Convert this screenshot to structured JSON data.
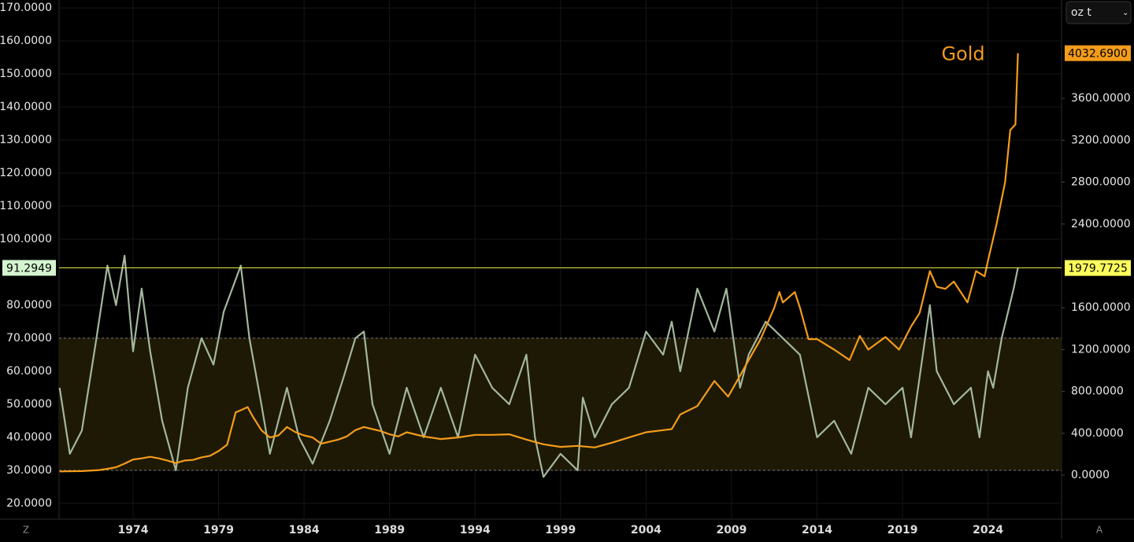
{
  "chart_data": {
    "type": "line",
    "unit_selector": "oz t",
    "scale_buttons": [
      "Z",
      "A"
    ],
    "xlim": [
      1969.67,
      2028.3
    ],
    "xticks": [
      1974,
      1979,
      1984,
      1989,
      1994,
      1999,
      2004,
      2009,
      2014,
      2019,
      2024
    ],
    "ylim": [
      15.2,
      172.4
    ],
    "yticks": [
      {
        "value": 20,
        "label": "20.0000"
      },
      {
        "value": 30,
        "label": "30.0000"
      },
      {
        "value": 40,
        "label": "40.0000"
      },
      {
        "value": 50,
        "label": "50.0000"
      },
      {
        "value": 60,
        "label": "60.0000"
      },
      {
        "value": 70,
        "label": "70.0000"
      },
      {
        "value": 80,
        "label": "80.0000"
      },
      {
        "value": 100,
        "label": "100.0000"
      },
      {
        "value": 110,
        "label": "110.0000"
      },
      {
        "value": 120,
        "label": "120.0000"
      },
      {
        "value": 130,
        "label": "130.0000"
      },
      {
        "value": 140,
        "label": "140.0000"
      },
      {
        "value": 150,
        "label": "150.0000"
      },
      {
        "value": 160,
        "label": "160.0000"
      },
      {
        "value": 170,
        "label": "170.0000"
      }
    ],
    "y2lim": [
      -421,
      4541
    ],
    "y2ticks": [
      {
        "value": 0,
        "label": "0.0000"
      },
      {
        "value": 400,
        "label": "400.0000"
      },
      {
        "value": 800,
        "label": "800.0000"
      },
      {
        "value": 1200,
        "label": "1200.0000"
      },
      {
        "value": 1600,
        "label": "1600.0000"
      },
      {
        "value": 2400,
        "label": "2400.0000"
      },
      {
        "value": 2800,
        "label": "2800.0000"
      },
      {
        "value": 3200,
        "label": "3200.0000"
      },
      {
        "value": 3600,
        "label": "3600.0000"
      }
    ],
    "grid": true,
    "band": {
      "from": 30,
      "to": 70,
      "color": "#1e1905"
    },
    "reference_line": {
      "value": 91.2949,
      "label": "91.2949",
      "y2_value": 1979.7725,
      "y2_label": "1979.7725",
      "color": "#e8e84a"
    },
    "series": [
      {
        "name": "Gold",
        "color": "#f39c1a",
        "axis": "y2",
        "last_value_label": "4032.6900",
        "x": [
          1969.7,
          1971,
          1972,
          1972.5,
          1973,
          1973.5,
          1974,
          1974.5,
          1975,
          1975.5,
          1976,
          1976.5,
          1977,
          1977.5,
          1978,
          1978.5,
          1979,
          1979.5,
          1980,
          1980.3,
          1980.7,
          1981,
          1981.5,
          1982,
          1982.5,
          1983,
          1983.5,
          1984,
          1984.5,
          1985,
          1985.5,
          1986,
          1986.5,
          1987,
          1987.5,
          1988,
          1988.5,
          1989,
          1989.5,
          1990,
          1991,
          1992,
          1993,
          1994,
          1995,
          1996,
          1997,
          1998,
          1999,
          2000,
          2001,
          2002,
          2003,
          2004,
          2005,
          2005.5,
          2006,
          2007,
          2008,
          2008.8,
          2009.5,
          2010,
          2010.7,
          2011.5,
          2011.8,
          2012,
          2012.7,
          2013,
          2013.5,
          2014,
          2015,
          2015.9,
          2016.5,
          2017,
          2018,
          2018.8,
          2019.5,
          2020,
          2020.6,
          2021,
          2021.5,
          2022,
          2022.8,
          2023.3,
          2023.8,
          2024,
          2024.5,
          2025,
          2025.3,
          2025.6,
          2025.75
        ],
        "values": [
          35,
          38,
          48,
          60,
          75,
          110,
          150,
          160,
          175,
          160,
          140,
          115,
          140,
          145,
          170,
          185,
          230,
          290,
          600,
          620,
          650,
          560,
          430,
          360,
          380,
          460,
          410,
          380,
          360,
          300,
          320,
          340,
          370,
          430,
          460,
          440,
          420,
          390,
          370,
          410,
          370,
          345,
          360,
          385,
          385,
          390,
          340,
          295,
          270,
          280,
          265,
          310,
          360,
          410,
          430,
          440,
          580,
          660,
          900,
          750,
          950,
          1100,
          1300,
          1600,
          1750,
          1650,
          1750,
          1600,
          1300,
          1300,
          1200,
          1100,
          1330,
          1200,
          1320,
          1200,
          1420,
          1550,
          1950,
          1800,
          1780,
          1850,
          1650,
          1950,
          1900,
          2050,
          2400,
          2800,
          3300,
          3350,
          4032.69
        ]
      },
      {
        "color": "#a3b79d",
        "x": [
          1969.7,
          1970.3,
          1971,
          1971.8,
          1972.5,
          1973,
          1973.5,
          1974,
          1974.5,
          1975,
          1975.7,
          1976.5,
          1977.2,
          1978,
          1978.7,
          1979.3,
          1980.3,
          1980.8,
          1981.5,
          1982,
          1983,
          1983.7,
          1984.5,
          1985.5,
          1986.3,
          1987,
          1987.5,
          1988,
          1989,
          1990,
          1991,
          1992,
          1993,
          1994,
          1995,
          1996,
          1997,
          1997.5,
          1998,
          1999,
          2000,
          2000.3,
          2001,
          2002,
          2003,
          2004,
          2005,
          2005.5,
          2006,
          2007,
          2008,
          2008.7,
          2009.5,
          2010,
          2011,
          2012,
          2013,
          2014,
          2015,
          2016,
          2017,
          2018,
          2019,
          2019.5,
          2020.6,
          2021,
          2022,
          2023,
          2023.5,
          2024,
          2024.3,
          2024.8,
          2025.5,
          2025.75
        ],
        "values": [
          55,
          35,
          42,
          68,
          92,
          80,
          95,
          66,
          85,
          66,
          45,
          30,
          55,
          70,
          62,
          78,
          92,
          70,
          50,
          35,
          55,
          40,
          32,
          45,
          58,
          70,
          72,
          50,
          35,
          55,
          40,
          55,
          40,
          65,
          55,
          50,
          65,
          40,
          28,
          35,
          30,
          52,
          40,
          50,
          55,
          72,
          65,
          75,
          60,
          85,
          72,
          85,
          55,
          65,
          75,
          70,
          65,
          40,
          45,
          35,
          55,
          50,
          55,
          40,
          80,
          60,
          50,
          55,
          40,
          60,
          55,
          70,
          85,
          91.2949
        ]
      }
    ]
  }
}
